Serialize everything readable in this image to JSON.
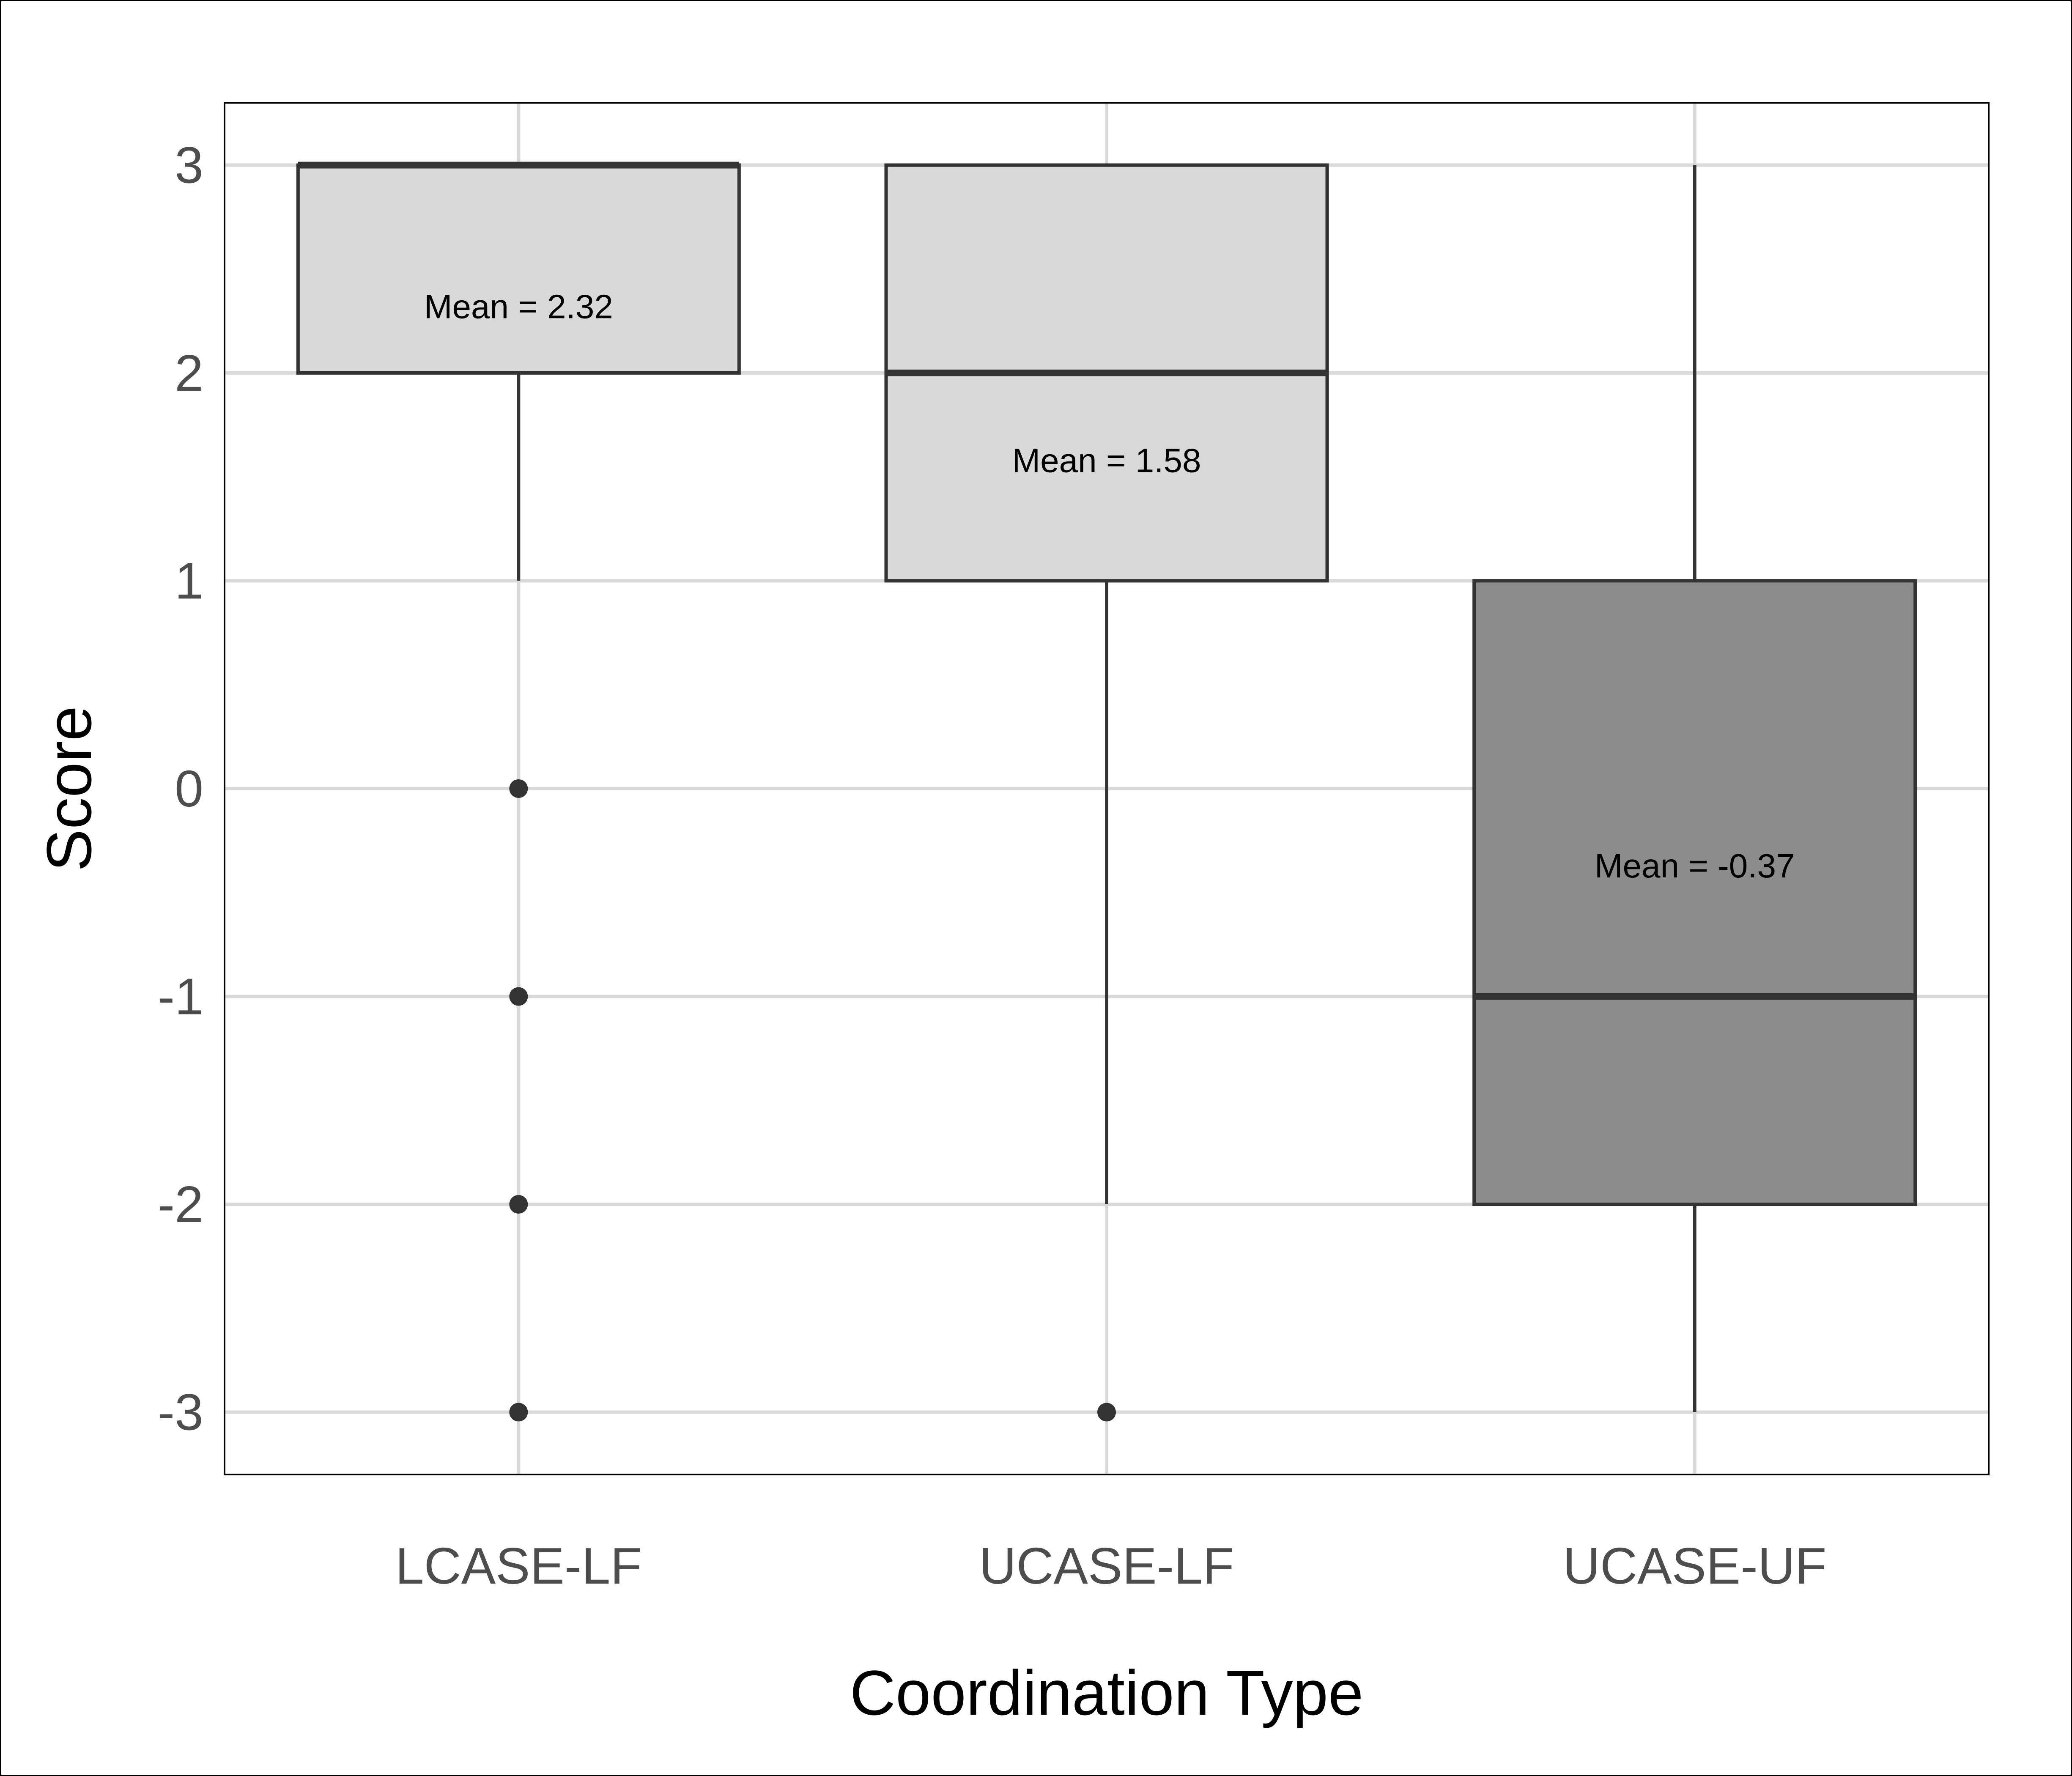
{
  "chart_data": {
    "type": "boxplot",
    "xlabel": "Coordination Type",
    "ylabel": "Score",
    "ylim": [
      -3.3,
      3.3
    ],
    "yticks": [
      "3",
      "2",
      "1",
      "0",
      "-1",
      "-2",
      "-3"
    ],
    "ytick_values": [
      3,
      2,
      1,
      0,
      -1,
      -2,
      -3
    ],
    "grid": true,
    "categories": [
      "LCASE-LF",
      "UCASE-LF",
      "UCASE-UF"
    ],
    "boxes": [
      {
        "category": "LCASE-LF",
        "whisker_low": 1,
        "q1": 2,
        "median": 3,
        "q3": 3,
        "whisker_high": 3,
        "outliers": [
          0,
          -1,
          -2,
          -3
        ],
        "mean": 2.32,
        "mean_label": "Mean = 2.32",
        "fill": "#d9d9d9"
      },
      {
        "category": "UCASE-LF",
        "whisker_low": -2,
        "q1": 1,
        "median": 2,
        "q3": 3,
        "whisker_high": 3,
        "outliers": [
          -3
        ],
        "mean": 1.58,
        "mean_label": "Mean = 1.58",
        "fill": "#d9d9d9"
      },
      {
        "category": "UCASE-UF",
        "whisker_low": -3,
        "q1": -2,
        "median": -1,
        "q3": 1,
        "whisker_high": 3,
        "outliers": [],
        "mean": -0.37,
        "mean_label": "Mean = -0.37",
        "fill": "#8c8c8c"
      }
    ],
    "colors": {
      "grid": "#d9d9d9",
      "stroke": "#333333",
      "outlier": "#333333"
    }
  }
}
